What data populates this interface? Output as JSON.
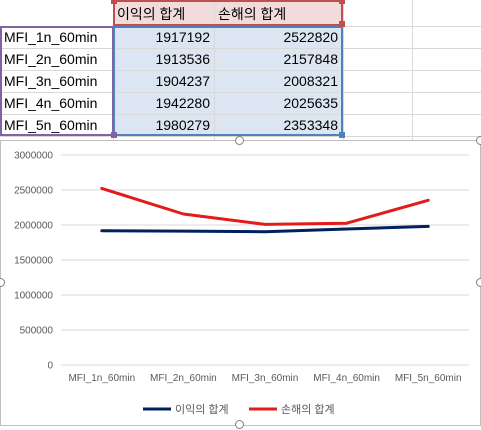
{
  "table": {
    "headers": [
      "이익의 합계",
      "손해의 합계"
    ],
    "rows": [
      {
        "label": "MFI_1n_60min",
        "profit": "1917192",
        "loss": "2522820"
      },
      {
        "label": "MFI_2n_60min",
        "profit": "1913536",
        "loss": "2157848"
      },
      {
        "label": "MFI_3n_60min",
        "profit": "1904237",
        "loss": "2008321"
      },
      {
        "label": "MFI_4n_60min",
        "profit": "1942280",
        "loss": "2025635"
      },
      {
        "label": "MFI_5n_60min",
        "profit": "1980279",
        "loss": "2353348"
      }
    ]
  },
  "colors": {
    "header_fill": "#f2dcdb",
    "value_fill": "#dce6f2",
    "profit_series": "#002060",
    "loss_series": "#e21b1b"
  },
  "chart_data": {
    "type": "line",
    "categories": [
      "MFI_1n_60min",
      "MFI_2n_60min",
      "MFI_3n_60min",
      "MFI_4n_60min",
      "MFI_5n_60min"
    ],
    "series": [
      {
        "name": "이익의 합계",
        "values": [
          1917192,
          1913536,
          1904237,
          1942280,
          1980279
        ]
      },
      {
        "name": "손해의 합계",
        "values": [
          2522820,
          2157848,
          2008321,
          2025635,
          2353348
        ]
      }
    ],
    "y_ticks": [
      "3000000",
      "2500000",
      "2000000",
      "1500000",
      "1000000",
      "500000",
      "0"
    ],
    "ylim": [
      0,
      3000000
    ],
    "grid": true,
    "legend": "bottom"
  }
}
